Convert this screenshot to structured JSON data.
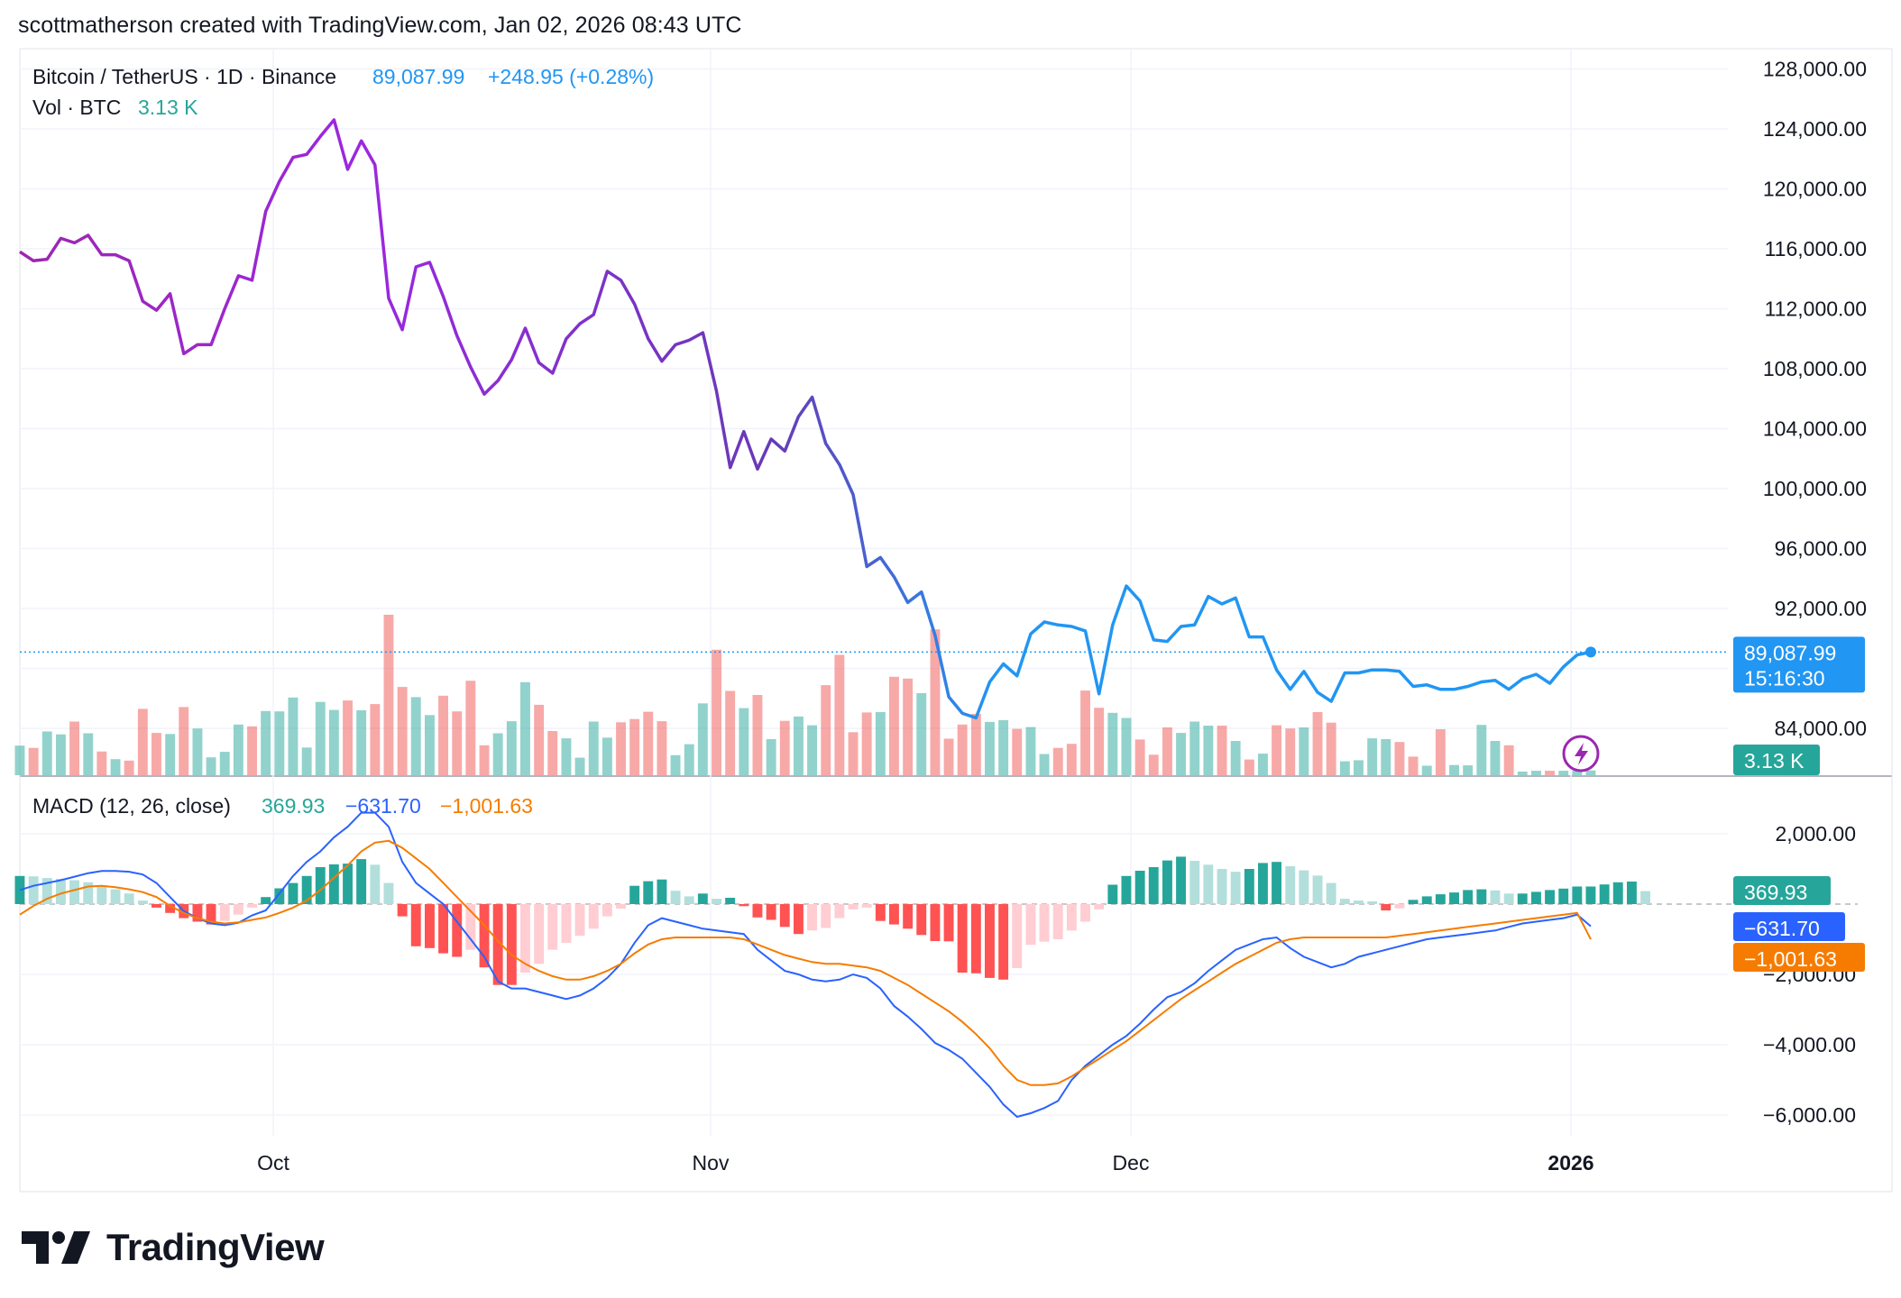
{
  "header": {
    "attribution": "scottmatherson created with TradingView.com, Jan 02, 2026 08:43 UTC"
  },
  "legend": {
    "symbol": "Bitcoin / TetherUS · 1D · Binance",
    "last_price": "89,087.99",
    "change": "+248.95 (+0.28%)",
    "vol_label": "Vol · BTC",
    "vol_value": "3.13 K",
    "macd_label": "MACD (12, 26, close)",
    "macd_hist": "369.93",
    "macd_line": "−631.70",
    "macd_signal": "−1,001.63"
  },
  "price_tags": {
    "price": "89,087.99",
    "countdown": "15:16:30",
    "volume": "3.13 K",
    "macd_hist": "369.93",
    "macd_line": "−631.70",
    "macd_signal": "−1,001.63"
  },
  "icons": {
    "lightning": "lightning-icon"
  },
  "colors": {
    "up": "#26a69a",
    "down": "#ef5350",
    "price_purple": "#9c27b0",
    "price_blue": "#2196f3",
    "macd_line": "#2962ff",
    "signal_line": "#f57c00",
    "accent_text": "#2962ff"
  },
  "footer": {
    "logo_text": "TradingView"
  },
  "chart_data": [
    {
      "type": "line",
      "title": "Bitcoin / TetherUS · 1D · Binance",
      "x_tick_labels": [
        "Oct",
        "Nov",
        "Dec",
        "2026"
      ],
      "y_tick_labels": [
        "128,000.00",
        "124,000.00",
        "120,000.00",
        "116,000.00",
        "112,000.00",
        "108,000.00",
        "104,000.00",
        "100,000.00",
        "96,000.00",
        "92,000.00",
        "84,000.00"
      ],
      "y_ticks": [
        128000,
        124000,
        120000,
        116000,
        112000,
        108000,
        104000,
        100000,
        96000,
        92000,
        84000
      ],
      "ylim": [
        81000,
        129500
      ],
      "series": [
        {
          "values": [
            115800,
            115200,
            115300,
            116700,
            116400,
            116900,
            115600,
            115600,
            115200,
            112500,
            111900,
            113000,
            109000,
            109600,
            109600,
            112000,
            114200,
            113900,
            118500,
            120500,
            122100,
            122300,
            123500,
            124600,
            121300,
            123200,
            121600,
            112700,
            110600,
            114800,
            115100,
            112800,
            110200,
            108100,
            106300,
            107200,
            108600,
            110700,
            108400,
            107700,
            110000,
            111000,
            111600,
            114500,
            113900,
            112300,
            110000,
            108500,
            109600,
            109900,
            110400,
            106500,
            101400,
            103800,
            101300,
            103300,
            102500,
            104800,
            106100,
            103000,
            101600,
            99600,
            94800,
            95400,
            94100,
            92400,
            93100,
            90200,
            86100,
            85000,
            84700,
            87100,
            88300,
            87500,
            90300,
            91100,
            90900,
            90800,
            90500,
            86300,
            90900,
            93500,
            92500,
            89900,
            89800,
            90800,
            90900,
            92800,
            92300,
            92700,
            90100,
            90100,
            87900,
            86600,
            87800,
            86400,
            85800,
            87700,
            87700,
            87900,
            87900,
            87800,
            86800,
            86900,
            86600,
            86600,
            86800,
            87100,
            87200,
            86600,
            87300,
            87600,
            87000,
            88100,
            88900,
            89087.99
          ]
        }
      ]
    },
    {
      "type": "bar",
      "title": "Vol · BTC",
      "series": [
        {
          "values": [
            8.1,
            7.5,
            12.0,
            11.2,
            14.7,
            11.5,
            6.5,
            4.4,
            4.0,
            18.2,
            11.6,
            11.3,
            18.7,
            12.8,
            4.9,
            6.4,
            13.9,
            13.4,
            17.6,
            17.5,
            21.3,
            7.6,
            20.1,
            17.9,
            20.5,
            17.8,
            19.5,
            44.0,
            24.2,
            21.4,
            16.5,
            21.8,
            17.5,
            25.9,
            8.2,
            11.5,
            14.8,
            25.5,
            19.3,
            12.1,
            10.1,
            4.8,
            14.7,
            10.3,
            14.5,
            15.4,
            17.4,
            14.8,
            5.5,
            8.5,
            19.7,
            34.4,
            23.1,
            18.4,
            22.0,
            9.9,
            14.9,
            16.1,
            13.7,
            24.7,
            33.0,
            11.8,
            17.2,
            17.3,
            27.0,
            26.5,
            22.5,
            40.0,
            10.0,
            13.9,
            16.8,
            14.6,
            15.1,
            12.7,
            13.2,
            5.8,
            7.5,
            8.6,
            23.2,
            18.5,
            17.1,
            15.7,
            9.8,
            5.6,
            13.1,
            11.6,
            14.7,
            13.6,
            13.6,
            9.4,
            4.3,
            5.9,
            13.7,
            12.8,
            13.1,
            17.3,
            14.4,
            3.8,
            4.1,
            10.1,
            9.9,
            9.1,
            5.1,
            2.6,
            12.6,
            2.8,
            2.7,
            13.8,
            9.4,
            8.2,
            1.0,
            1.2,
            1.2,
            1.2,
            1.2,
            1.3
          ]
        }
      ]
    },
    {
      "type": "line",
      "title": "MACD (12, 26, close)",
      "y_tick_labels": [
        "2,000.00",
        "−2,000.00",
        "−4,000.00",
        "−6,000.00"
      ],
      "y_ticks": [
        2000,
        -2000,
        -4000,
        -6000
      ],
      "ylim": [
        -7000,
        3300
      ],
      "series": [
        {
          "name": "Histogram",
          "values": [
            800,
            790,
            740,
            720,
            680,
            620,
            520,
            420,
            300,
            100,
            -100,
            -250,
            -400,
            -500,
            -580,
            -480,
            -300,
            -100,
            200,
            450,
            600,
            800,
            1050,
            1130,
            1150,
            1280,
            1120,
            600,
            -350,
            -1200,
            -1250,
            -1400,
            -1500,
            -1300,
            -1800,
            -2300,
            -2300,
            -1950,
            -1700,
            -1300,
            -1100,
            -900,
            -700,
            -350,
            -130,
            520,
            650,
            700,
            380,
            220,
            300,
            150,
            180,
            -60,
            -380,
            -450,
            -650,
            -850,
            -750,
            -680,
            -400,
            -150,
            -100,
            -480,
            -580,
            -700,
            -880,
            -1050,
            -1060,
            -1950,
            -1970,
            -2100,
            -2150,
            -1820,
            -1160,
            -1070,
            -1000,
            -750,
            -500,
            -150,
            550,
            800,
            950,
            1050,
            1240,
            1350,
            1230,
            1120,
            1000,
            920,
            1000,
            1170,
            1200,
            1080,
            960,
            810,
            600,
            150,
            100,
            80,
            -180,
            -120,
            120,
            220,
            280,
            330,
            400,
            420,
            390,
            300,
            300,
            350,
            400,
            440,
            500,
            500,
            560,
            620,
            640,
            369.93
          ]
        },
        {
          "name": "MACD",
          "values": [
            400,
            520,
            600,
            680,
            780,
            880,
            940,
            940,
            920,
            840,
            600,
            200,
            -200,
            -400,
            -550,
            -600,
            -530,
            -320,
            -180,
            300,
            800,
            1200,
            1500,
            1900,
            2200,
            2600,
            2600,
            2200,
            1200,
            600,
            300,
            0,
            -500,
            -1000,
            -1500,
            -2200,
            -2400,
            -2400,
            -2500,
            -2600,
            -2700,
            -2600,
            -2400,
            -2100,
            -1700,
            -1100,
            -600,
            -400,
            -500,
            -600,
            -700,
            -750,
            -800,
            -850,
            -1300,
            -1600,
            -1900,
            -2000,
            -2150,
            -2200,
            -2150,
            -2000,
            -2100,
            -2400,
            -2900,
            -3200,
            -3550,
            -3950,
            -4150,
            -4400,
            -4800,
            -5200,
            -5700,
            -6050,
            -5950,
            -5800,
            -5600,
            -5000,
            -4600,
            -4300,
            -4000,
            -3750,
            -3400,
            -3000,
            -2650,
            -2500,
            -2250,
            -1900,
            -1600,
            -1300,
            -1150,
            -1000,
            -950,
            -1250,
            -1500,
            -1650,
            -1800,
            -1700,
            -1500,
            -1400,
            -1300,
            -1200,
            -1100,
            -1000,
            -950,
            -900,
            -850,
            -800,
            -750,
            -650,
            -550,
            -500,
            -450,
            -400,
            -300,
            -631.7
          ]
        },
        {
          "name": "Signal",
          "values": [
            -300,
            -50,
            150,
            300,
            400,
            500,
            520,
            480,
            420,
            340,
            200,
            -50,
            -250,
            -400,
            -500,
            -550,
            -520,
            -450,
            -380,
            -250,
            -100,
            100,
            400,
            750,
            1100,
            1500,
            1750,
            1800,
            1600,
            1300,
            1000,
            600,
            200,
            -200,
            -600,
            -1050,
            -1450,
            -1700,
            -1900,
            -2050,
            -2150,
            -2150,
            -2050,
            -1900,
            -1700,
            -1400,
            -1150,
            -1000,
            -950,
            -950,
            -950,
            -950,
            -950,
            -1000,
            -1150,
            -1300,
            -1450,
            -1550,
            -1650,
            -1700,
            -1700,
            -1750,
            -1800,
            -1900,
            -2100,
            -2300,
            -2550,
            -2800,
            -3050,
            -3350,
            -3700,
            -4100,
            -4600,
            -5000,
            -5150,
            -5150,
            -5100,
            -4900,
            -4650,
            -4400,
            -4150,
            -3900,
            -3600,
            -3300,
            -3000,
            -2700,
            -2450,
            -2200,
            -1950,
            -1700,
            -1500,
            -1300,
            -1100,
            -1000,
            -950,
            -950,
            -950,
            -950,
            -950,
            -950,
            -950,
            -900,
            -850,
            -800,
            -750,
            -700,
            -650,
            -600,
            -550,
            -500,
            -450,
            -400,
            -350,
            -300,
            -250,
            -1001.63
          ]
        }
      ]
    }
  ]
}
